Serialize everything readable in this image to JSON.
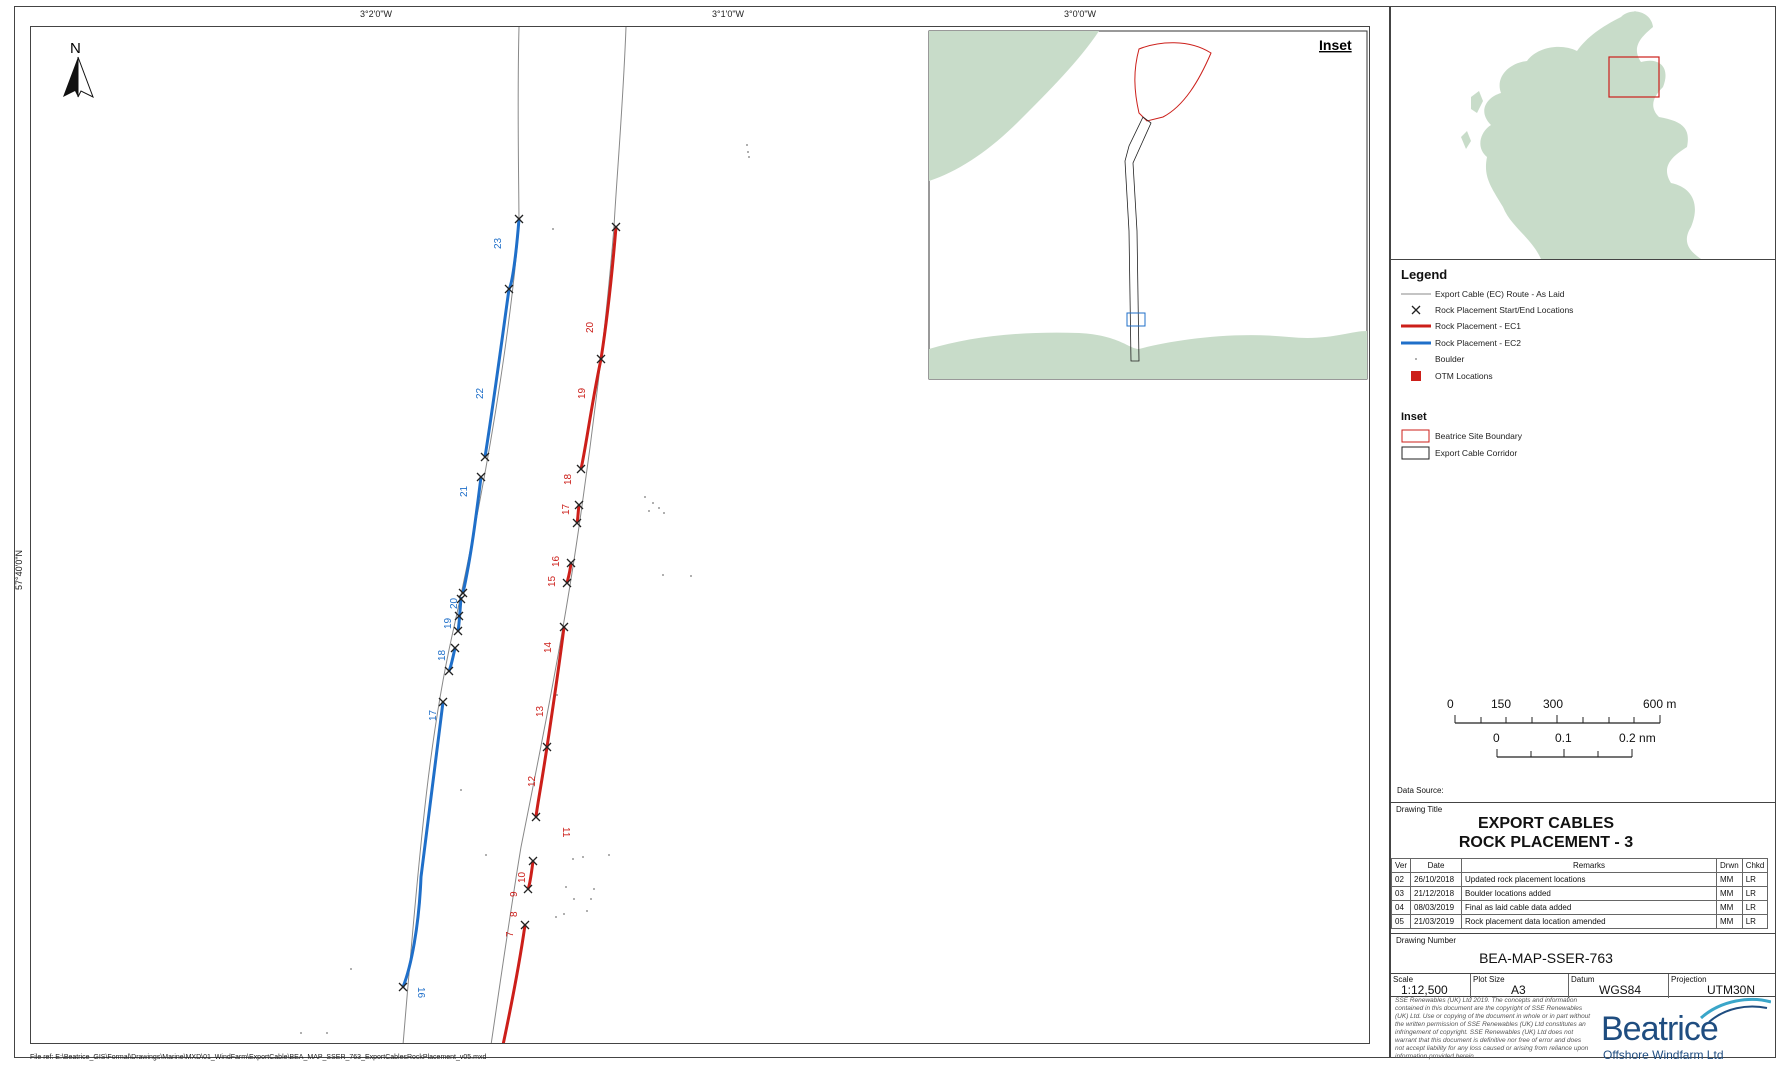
{
  "graticule": {
    "top": [
      "3°2'0\"W",
      "3°1'0\"W",
      "3°0'0\"W"
    ],
    "left": [
      "57°40'0\"N"
    ]
  },
  "file_ref": "File ref: E:\\Beatrice_GIS\\Formal\\Drawings\\Marine\\MXD\\01_WindFarm\\ExportCable\\BEA_MAP_SSER_763_ExportCablesRockPlacement_v05.mxd",
  "north_arrow": {
    "label": "N"
  },
  "inset": {
    "title": "Inset"
  },
  "ec2_labels": [
    "23",
    "22",
    "21",
    "20",
    "19",
    "18",
    "17",
    "16"
  ],
  "ec1_labels": [
    "20",
    "19",
    "18",
    "17",
    "16",
    "15",
    "14",
    "13",
    "12",
    "11",
    "10",
    "9",
    "8",
    "7"
  ],
  "legend": {
    "title": "Legend",
    "items": [
      {
        "label": "Export Cable (EC) Route - As Laid",
        "symbol": "thin-line"
      },
      {
        "label": "Rock Placement Start/End Locations",
        "symbol": "x-mark"
      },
      {
        "label": "Rock Placement - EC1",
        "symbol": "red-line"
      },
      {
        "label": "Rock Placement - EC2",
        "symbol": "blue-line"
      },
      {
        "label": "Boulder",
        "symbol": "dot"
      },
      {
        "label": "OTM Locations",
        "symbol": "red-square"
      }
    ],
    "inset_title": "Inset",
    "inset_items": [
      {
        "label": "Beatrice Site Boundary",
        "symbol": "red-box"
      },
      {
        "label": "Export Cable Corridor",
        "symbol": "black-box"
      }
    ],
    "colors": {
      "ec1": "#cc1f1a",
      "ec2": "#1f6fc9",
      "land": "#c8dcc9",
      "route": "#888888"
    }
  },
  "scalebar": {
    "m_labels": [
      "0",
      "150",
      "300",
      "600 m"
    ],
    "nm_labels": [
      "0",
      "0.1",
      "0.2 nm"
    ]
  },
  "data_source": "Data Source:",
  "drawing_title_label": "Drawing Title",
  "drawing_title": [
    "EXPORT CABLES",
    "ROCK PLACEMENT - 3"
  ],
  "revisions": {
    "headers": [
      "Ver",
      "Date",
      "Remarks",
      "Drwn",
      "Chkd"
    ],
    "rows": [
      [
        "02",
        "26/10/2018",
        "Updated rock placement locations",
        "MM",
        "LR"
      ],
      [
        "03",
        "21/12/2018",
        "Boulder locations added",
        "MM",
        "LR"
      ],
      [
        "04",
        "08/03/2019",
        "Final as laid cable data added",
        "MM",
        "LR"
      ],
      [
        "05",
        "21/03/2019",
        "Rock placement data location amended",
        "MM",
        "LR"
      ]
    ]
  },
  "drawing_number_label": "Drawing Number",
  "drawing_number": "BEA-MAP-SSER-763",
  "info": {
    "scale_label": "Scale",
    "scale": "1:12,500",
    "plot_label": "Plot Size",
    "plot": "A3",
    "datum_label": "Datum",
    "datum": "WGS84",
    "proj_label": "Projection",
    "proj": "UTM30N"
  },
  "copyright": "SSE Renewables (UK) Ltd 2019. The concepts and information contained in this document are the copyright of SSE Renewables (UK) Ltd. Use or copying of the document in whole or in part without the written permission of SSE Renewables (UK) Ltd constitutes an infringement of copyright. SSE Renewables (UK) Ltd does not warrant that this document is definitive nor free of error and does not accept liability for any loss caused or arising from reliance upon information provided herein.",
  "logo": {
    "brand": "Beatrice",
    "sub": "Offshore Windfarm Ltd"
  }
}
